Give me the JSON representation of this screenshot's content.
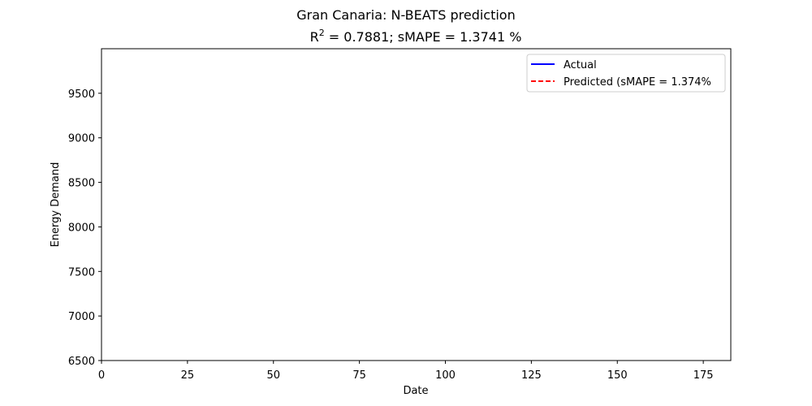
{
  "chart_data": {
    "type": "line",
    "suptitle": "Gran Canaria: N-BEATS prediction",
    "title_prefix": "R",
    "title_superscript": "2",
    "title_suffix": " = 0.7881; sMAPE = 1.3741 %",
    "xlabel": "Date",
    "ylabel": "Energy Demand",
    "xlim": [
      0,
      183
    ],
    "ylim": [
      6500,
      10000
    ],
    "xticks": [
      0,
      25,
      50,
      75,
      100,
      125,
      150,
      175
    ],
    "yticks": [
      6500,
      7000,
      7500,
      8000,
      8500,
      9000,
      9500
    ],
    "grid": false,
    "legend_position": "upper right",
    "series": [
      {
        "name": "Actual",
        "color": "#0000ff",
        "style": "solid",
        "values": []
      },
      {
        "name": "Predicted (sMAPE = 1.374%",
        "color": "#ff0000",
        "style": "dashed",
        "values": []
      }
    ]
  }
}
